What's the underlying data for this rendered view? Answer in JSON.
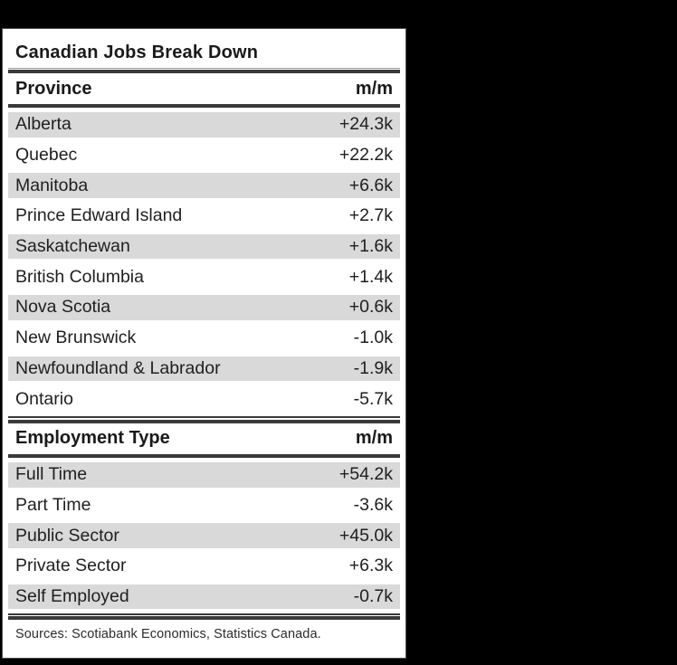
{
  "title": "Canadian Jobs Break Down",
  "sections": [
    {
      "header": {
        "label": "Province",
        "unit": "m/m"
      },
      "rows": [
        {
          "label": "Alberta",
          "value": "+24.3k"
        },
        {
          "label": "Quebec",
          "value": "+22.2k"
        },
        {
          "label": "Manitoba",
          "value": "+6.6k"
        },
        {
          "label": "Prince Edward Island",
          "value": "+2.7k"
        },
        {
          "label": "Saskatchewan",
          "value": "+1.6k"
        },
        {
          "label": "British Columbia",
          "value": "+1.4k"
        },
        {
          "label": "Nova Scotia",
          "value": "+0.6k"
        },
        {
          "label": "New Brunswick",
          "value": "-1.0k"
        },
        {
          "label": "Newfoundland & Labrador",
          "value": "-1.9k"
        },
        {
          "label": "Ontario",
          "value": "-5.7k"
        }
      ]
    },
    {
      "header": {
        "label": "Employment Type",
        "unit": "m/m"
      },
      "rows": [
        {
          "label": "Full Time",
          "value": "+54.2k"
        },
        {
          "label": "Part Time",
          "value": "-3.6k"
        },
        {
          "label": "Public Sector",
          "value": "+45.0k"
        },
        {
          "label": "Private Sector",
          "value": "+6.3k"
        },
        {
          "label": "Self Employed",
          "value": "-0.7k"
        }
      ]
    }
  ],
  "footer": {
    "sources": "Sources: Scotiabank Economics, Statistics Canada."
  },
  "colors": {
    "background": "#000000",
    "card": "#ffffff",
    "card_border": "#4f4f4f",
    "row_alt": "#d9d9d9",
    "rule": "#3a3a3a",
    "text": "#1a1a1a"
  },
  "chart_data": {
    "type": "table",
    "title": "Canadian Jobs Break Down",
    "sections": [
      {
        "columns": [
          "Province",
          "m/m"
        ],
        "rows": [
          [
            "Alberta",
            "+24.3k"
          ],
          [
            "Quebec",
            "+22.2k"
          ],
          [
            "Manitoba",
            "+6.6k"
          ],
          [
            "Prince Edward Island",
            "+2.7k"
          ],
          [
            "Saskatchewan",
            "+1.6k"
          ],
          [
            "British Columbia",
            "+1.4k"
          ],
          [
            "Nova Scotia",
            "+0.6k"
          ],
          [
            "New Brunswick",
            "-1.0k"
          ],
          [
            "Newfoundland & Labrador",
            "-1.9k"
          ],
          [
            "Ontario",
            "-5.7k"
          ]
        ]
      },
      {
        "columns": [
          "Employment Type",
          "m/m"
        ],
        "rows": [
          [
            "Full Time",
            "+54.2k"
          ],
          [
            "Part Time",
            "-3.6k"
          ],
          [
            "Public Sector",
            "+45.0k"
          ],
          [
            "Private Sector",
            "+6.3k"
          ],
          [
            "Self Employed",
            "-0.7k"
          ]
        ]
      }
    ],
    "source_note": "Sources: Scotiabank Economics, Statistics Canada."
  }
}
